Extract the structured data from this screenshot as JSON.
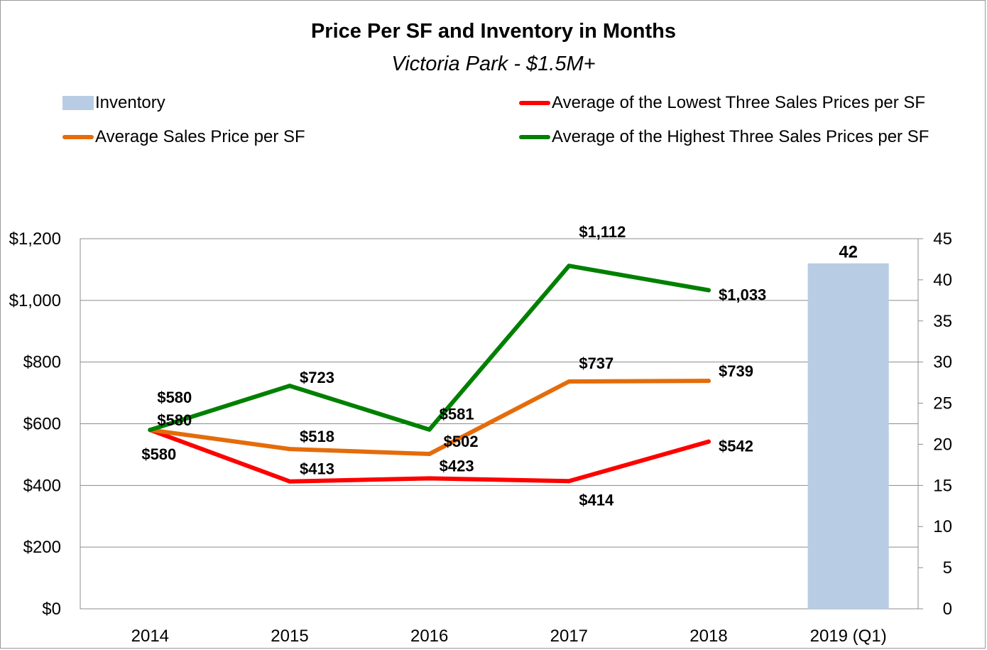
{
  "chart_data": {
    "type": "line",
    "title": "Price Per SF and Inventory in Months",
    "subtitle": "Victoria Park - $1.5M+",
    "categories": [
      "2014",
      "2015",
      "2016",
      "2017",
      "2018",
      "2019 (Q1)"
    ],
    "y_left": {
      "min": 0,
      "max": 1200,
      "step": 200,
      "tick_labels": [
        "$0",
        "$200",
        "$400",
        "$600",
        "$800",
        "$1,000",
        "$1,200"
      ]
    },
    "y_right": {
      "min": 0,
      "max": 45,
      "step": 5,
      "tick_labels": [
        "0",
        "5",
        "10",
        "15",
        "20",
        "25",
        "30",
        "35",
        "40",
        "45"
      ]
    },
    "grid": true,
    "legend_position": "top",
    "series": [
      {
        "name": "Inventory",
        "type": "bar",
        "axis": "right",
        "color": "#b8cce4",
        "values": [
          null,
          null,
          null,
          null,
          null,
          42
        ],
        "labels": [
          null,
          null,
          null,
          null,
          null,
          "42"
        ]
      },
      {
        "name": "Average of the Lowest Three Sales Prices per SF",
        "type": "line",
        "axis": "left",
        "color": "#ff0000",
        "values": [
          580,
          413,
          423,
          414,
          542,
          null
        ],
        "labels": [
          "$580",
          "$413",
          "$423",
          "$414",
          "$542",
          null
        ]
      },
      {
        "name": "Average Sales Price per SF",
        "type": "line",
        "axis": "left",
        "color": "#e46c0a",
        "values": [
          580,
          518,
          502,
          737,
          739,
          null
        ],
        "labels": [
          "$580",
          "$518",
          "$502",
          "$737",
          "$739",
          null
        ]
      },
      {
        "name": "Average of the Highest Three Sales Prices per SF",
        "type": "line",
        "axis": "left",
        "color": "#008000",
        "values": [
          580,
          723,
          581,
          1112,
          1033,
          null
        ],
        "labels": [
          "$580",
          "$723",
          "$581",
          "$1,112",
          "$1,033",
          null
        ]
      }
    ]
  }
}
